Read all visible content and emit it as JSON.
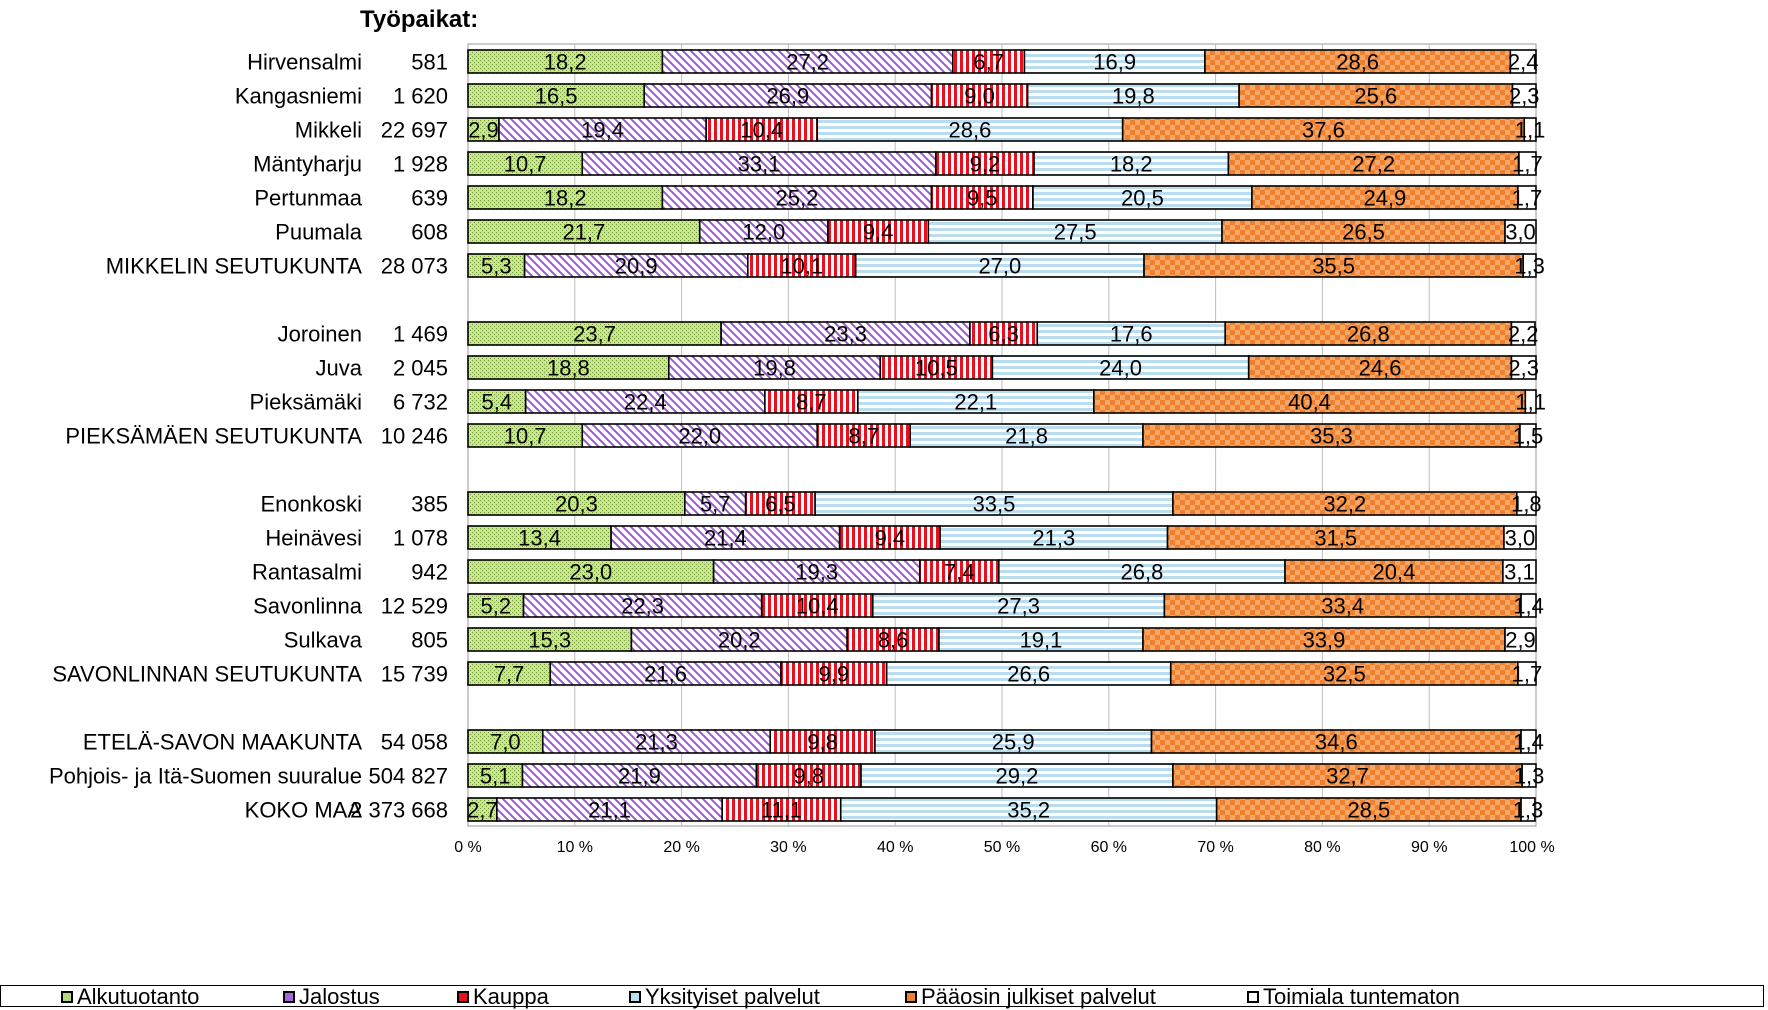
{
  "chart_data": {
    "type": "bar",
    "orientation": "horizontal",
    "stacked": "percent",
    "title": "Työpaikat:",
    "xlim": [
      0,
      100
    ],
    "x_ticks": [
      "0 %",
      "10 %",
      "20 %",
      "30 %",
      "40 %",
      "50 %",
      "60 %",
      "70 %",
      "80 %",
      "90 %",
      "100 %"
    ],
    "grid": "vertical",
    "legend_position": "bottom",
    "categories": [
      {
        "name": "Hirvensalmi",
        "total": "581"
      },
      {
        "name": "Kangasniemi",
        "total": "1 620"
      },
      {
        "name": "Mikkeli",
        "total": "22 697"
      },
      {
        "name": "Mäntyharju",
        "total": "1 928"
      },
      {
        "name": "Pertunmaa",
        "total": "639"
      },
      {
        "name": "Puumala",
        "total": "608"
      },
      {
        "name": "MIKKELIN SEUTUKUNTA",
        "total": "28 073"
      },
      {
        "name": "Joroinen",
        "total": "1 469"
      },
      {
        "name": "Juva",
        "total": "2 045"
      },
      {
        "name": "Pieksämäki",
        "total": "6 732"
      },
      {
        "name": "PIEKSÄMÄEN SEUTUKUNTA",
        "total": "10 246"
      },
      {
        "name": "Enonkoski",
        "total": "385"
      },
      {
        "name": "Heinävesi",
        "total": "1 078"
      },
      {
        "name": "Rantasalmi",
        "total": "942"
      },
      {
        "name": "Savonlinna",
        "total": "12 529"
      },
      {
        "name": "Sulkava",
        "total": "805"
      },
      {
        "name": "SAVONLINNAN SEUTUKUNTA",
        "total": "15 739"
      },
      {
        "name": "ETELÄ-SAVON MAAKUNTA",
        "total": "54 058"
      },
      {
        "name": "Pohjois- ja Itä-Suomen suuralue",
        "total": "504 827"
      },
      {
        "name": "KOKO MAA",
        "total": "2 373 668"
      }
    ],
    "series": [
      {
        "name": "Alkutuotanto",
        "color": "#b5d77a",
        "values": [
          18.2,
          16.5,
          2.9,
          10.7,
          18.2,
          21.7,
          5.3,
          23.7,
          18.8,
          5.4,
          10.7,
          20.3,
          13.4,
          23.0,
          5.2,
          15.3,
          7.7,
          7.0,
          5.1,
          2.7
        ]
      },
      {
        "name": "Jalostus",
        "color": "#a566d9",
        "values": [
          27.2,
          26.9,
          19.4,
          33.1,
          25.2,
          12.0,
          20.9,
          23.3,
          19.8,
          22.4,
          22.0,
          5.7,
          21.4,
          19.3,
          22.3,
          20.2,
          21.6,
          21.3,
          21.9,
          21.1
        ]
      },
      {
        "name": "Kauppa",
        "color": "#e8101e",
        "values": [
          6.7,
          9.0,
          10.4,
          9.2,
          9.5,
          9.4,
          10.1,
          6.3,
          10.5,
          8.7,
          8.7,
          6.5,
          9.4,
          7.4,
          10.4,
          8.6,
          9.9,
          9.8,
          9.8,
          11.1
        ]
      },
      {
        "name": "Yksityiset palvelut",
        "color": "#b9dcee",
        "values": [
          16.9,
          19.8,
          28.6,
          18.2,
          20.5,
          27.5,
          27.0,
          17.6,
          24.0,
          22.1,
          21.8,
          33.5,
          21.3,
          26.8,
          27.3,
          19.1,
          26.6,
          25.9,
          29.2,
          35.2
        ]
      },
      {
        "name": "Pääosin julkiset palvelut",
        "color": "#f07f2e",
        "values": [
          28.6,
          25.6,
          37.6,
          27.2,
          24.9,
          26.5,
          35.5,
          26.8,
          24.6,
          40.4,
          35.3,
          32.2,
          31.5,
          20.4,
          33.4,
          33.9,
          32.5,
          34.6,
          32.7,
          28.5
        ]
      },
      {
        "name": "Toimiala tuntematon",
        "color": "#ffffff",
        "values": [
          2.4,
          2.3,
          1.1,
          1.7,
          1.7,
          3.0,
          1.3,
          2.2,
          2.3,
          1.1,
          1.5,
          1.8,
          3.0,
          3.1,
          1.4,
          2.9,
          1.7,
          1.4,
          1.3,
          1.3
        ]
      }
    ]
  }
}
